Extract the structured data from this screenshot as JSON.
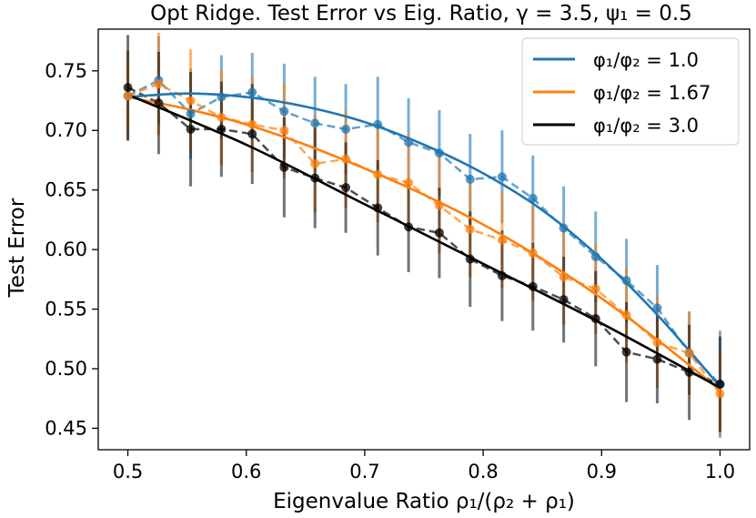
{
  "chart_data": {
    "type": "line",
    "title": "Opt Ridge. Test Error vs Eig. Ratio, γ = 3.5, ψ₁ = 0.5",
    "xlabel": "Eigenvalue Ratio ρ₁/(ρ₂ + ρ₁)",
    "ylabel": "Test Error",
    "xlim": [
      0.475,
      1.025
    ],
    "ylim": [
      0.432,
      0.785
    ],
    "xticks": [
      0.5,
      0.6,
      0.7,
      0.8,
      0.9,
      1.0
    ],
    "xtick_labels": [
      "0.5",
      "0.6",
      "0.7",
      "0.8",
      "0.9",
      "1.0"
    ],
    "yticks": [
      0.45,
      0.5,
      0.55,
      0.6,
      0.65,
      0.7,
      0.75
    ],
    "ytick_labels": [
      "0.45",
      "0.50",
      "0.55",
      "0.60",
      "0.65",
      "0.70",
      "0.75"
    ],
    "legend_position": "top-right",
    "x": [
      0.5,
      0.526,
      0.553,
      0.579,
      0.605,
      0.632,
      0.658,
      0.684,
      0.711,
      0.737,
      0.763,
      0.789,
      0.816,
      0.842,
      0.868,
      0.895,
      0.921,
      0.947,
      0.974,
      1.0
    ],
    "series": [
      {
        "name": "φ₁/φ₂ = 1.0",
        "legend_label": "φ₁/φ₂ = 1.0",
        "color": "#1f77b4",
        "curve_x": [
          0.5,
          0.55,
          0.6,
          0.65,
          0.7,
          0.75,
          0.8,
          0.85,
          0.9,
          0.95,
          1.0
        ],
        "curve_y": [
          0.728,
          0.731,
          0.728,
          0.72,
          0.707,
          0.688,
          0.664,
          0.633,
          0.592,
          0.542,
          0.485
        ],
        "empirical_y": [
          0.729,
          0.742,
          0.714,
          0.728,
          0.732,
          0.716,
          0.706,
          0.701,
          0.705,
          0.69,
          0.681,
          0.659,
          0.661,
          0.643,
          0.618,
          0.594,
          0.574,
          0.551,
          0.513,
          0.487
        ],
        "error": [
          0.038,
          0.037,
          0.038,
          0.035,
          0.033,
          0.04,
          0.039,
          0.038,
          0.04,
          0.037,
          0.036,
          0.038,
          0.039,
          0.036,
          0.035,
          0.038,
          0.035,
          0.036,
          0.035,
          0.045
        ]
      },
      {
        "name": "φ₁/φ₂ = 1.67",
        "legend_label": "φ₁/φ₂ = 1.67",
        "color": "#ff7f0e",
        "curve_x": [
          0.5,
          0.55,
          0.6,
          0.65,
          0.7,
          0.75,
          0.8,
          0.85,
          0.9,
          0.95,
          1.0
        ],
        "curve_y": [
          0.728,
          0.718,
          0.705,
          0.688,
          0.668,
          0.646,
          0.621,
          0.592,
          0.559,
          0.522,
          0.482
        ],
        "empirical_y": [
          0.729,
          0.739,
          0.725,
          0.711,
          0.705,
          0.7,
          0.672,
          0.676,
          0.663,
          0.656,
          0.637,
          0.617,
          0.608,
          0.597,
          0.577,
          0.567,
          0.545,
          0.522,
          0.513,
          0.479
        ],
        "error": [
          0.037,
          0.043,
          0.043,
          0.04,
          0.04,
          0.04,
          0.041,
          0.041,
          0.04,
          0.041,
          0.04,
          0.04,
          0.04,
          0.04,
          0.04,
          0.038,
          0.04,
          0.038,
          0.035,
          0.036
        ]
      },
      {
        "name": "φ₁/φ₂ = 3.0",
        "legend_label": "φ₁/φ₂ = 3.0",
        "color": "#000000",
        "curve_x": [
          0.5,
          0.6,
          0.7,
          0.8,
          0.9,
          1.0
        ],
        "curve_y": [
          0.73,
          0.688,
          0.638,
          0.588,
          0.538,
          0.484
        ],
        "empirical_y": [
          0.736,
          0.723,
          0.701,
          0.701,
          0.697,
          0.669,
          0.66,
          0.652,
          0.635,
          0.619,
          0.614,
          0.592,
          0.578,
          0.569,
          0.558,
          0.542,
          0.514,
          0.508,
          0.497,
          0.487
        ],
        "error": [
          0.044,
          0.043,
          0.048,
          0.04,
          0.042,
          0.042,
          0.042,
          0.038,
          0.04,
          0.038,
          0.038,
          0.04,
          0.038,
          0.037,
          0.036,
          0.04,
          0.042,
          0.037,
          0.04,
          0.04
        ]
      }
    ]
  }
}
